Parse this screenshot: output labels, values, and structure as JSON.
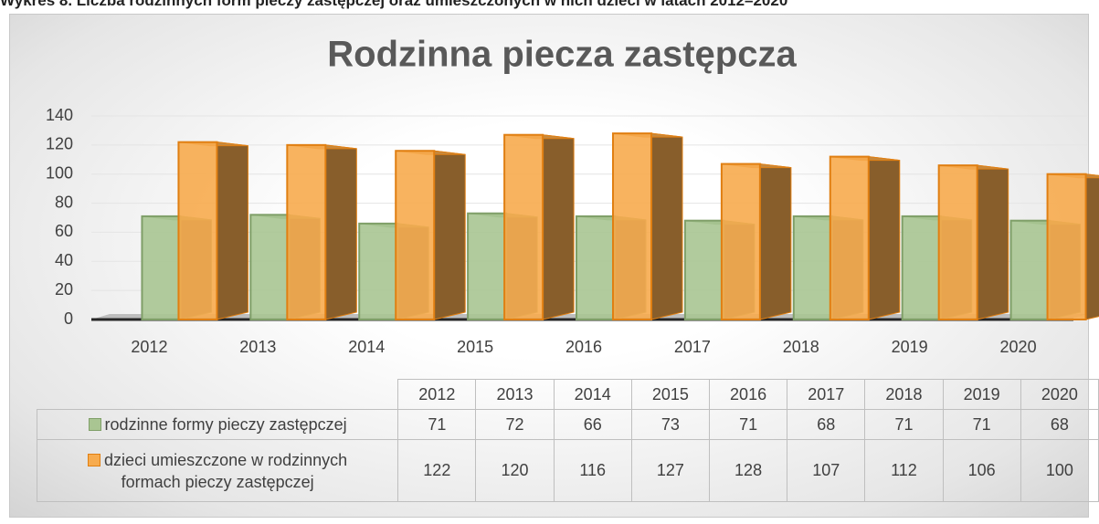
{
  "chart_data": {
    "type": "bar3d",
    "caption": "Wykres 8. Liczba rodzinnych form pieczy zastępczej oraz umieszczonych w nich dzieci w latach 2012–2020",
    "title": "Rodzinna piecza zastępcza",
    "categories": [
      "2012",
      "2013",
      "2014",
      "2015",
      "2016",
      "2017",
      "2018",
      "2019",
      "2020"
    ],
    "series": [
      {
        "name": "rodzinne formy pieczy zastępczej",
        "color": "#a9c592",
        "edge": "#7f9f68",
        "values": [
          71,
          72,
          66,
          73,
          71,
          68,
          71,
          71,
          68
        ]
      },
      {
        "name": "dzieci umieszczone w rodzinnych formach pieczy zastępczej",
        "color": "#f7ab4e",
        "edge": "#e07f12",
        "values": [
          122,
          120,
          116,
          127,
          128,
          107,
          112,
          106,
          100
        ]
      }
    ],
    "ylim": [
      0,
      140
    ],
    "yticks": [
      0,
      20,
      40,
      60,
      80,
      100,
      120,
      140
    ],
    "grid": true,
    "data_table": true
  }
}
